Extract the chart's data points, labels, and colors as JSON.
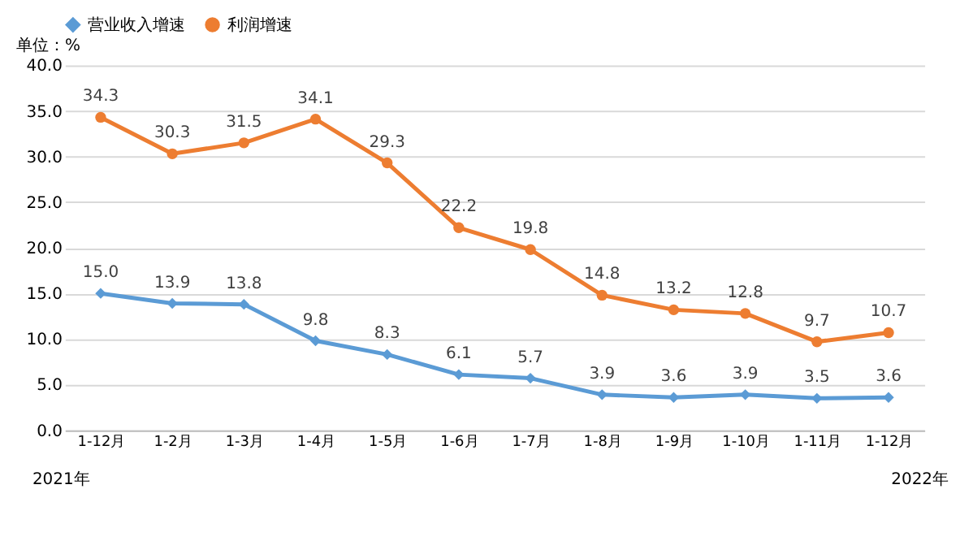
{
  "chart_data": {
    "type": "line",
    "categories": [
      "1-12月",
      "1-2月",
      "1-3月",
      "1-4月",
      "1-5月",
      "1-6月",
      "1-7月",
      "1-8月",
      "1-9月",
      "1-10月",
      "1-11月",
      "1-12月"
    ],
    "series": [
      {
        "name": "营业收入增速",
        "color": "#5b9bd5",
        "marker": "diamond",
        "values": [
          15.0,
          13.9,
          13.8,
          9.8,
          8.3,
          6.1,
          5.7,
          3.9,
          3.6,
          3.9,
          3.5,
          3.6
        ],
        "value_labels": [
          "15.0",
          "13.9",
          "13.8",
          "9.8",
          "8.3",
          "6.1",
          "5.7",
          "3.9",
          "3.6",
          "3.9",
          "3.5",
          "3.6"
        ]
      },
      {
        "name": "利润增速",
        "color": "#ed7d31",
        "marker": "circle",
        "values": [
          34.3,
          30.3,
          31.5,
          34.1,
          29.3,
          22.2,
          19.8,
          14.8,
          13.2,
          12.8,
          9.7,
          10.7
        ],
        "value_labels": [
          "34.3",
          "30.3",
          "31.5",
          "34.1",
          "29.3",
          "22.2",
          "19.8",
          "14.8",
          "13.2",
          "12.8",
          "9.7",
          "10.7"
        ]
      }
    ],
    "ylim": [
      0,
      40
    ],
    "yticks": [
      {
        "value": 0,
        "label": "0.0"
      },
      {
        "value": 5,
        "label": "5.0"
      },
      {
        "value": 10,
        "label": "10.0"
      },
      {
        "value": 15,
        "label": "15.0"
      },
      {
        "value": 20,
        "label": "20.0"
      },
      {
        "value": 25,
        "label": "25.0"
      },
      {
        "value": 30,
        "label": "30.0"
      },
      {
        "value": 35,
        "label": "35.0"
      },
      {
        "value": 40,
        "label": "40.0"
      }
    ],
    "grid": "y",
    "legend": "top",
    "line_style": "solid",
    "annotations": [
      "单位：%",
      "2021年",
      "2022年"
    ]
  }
}
